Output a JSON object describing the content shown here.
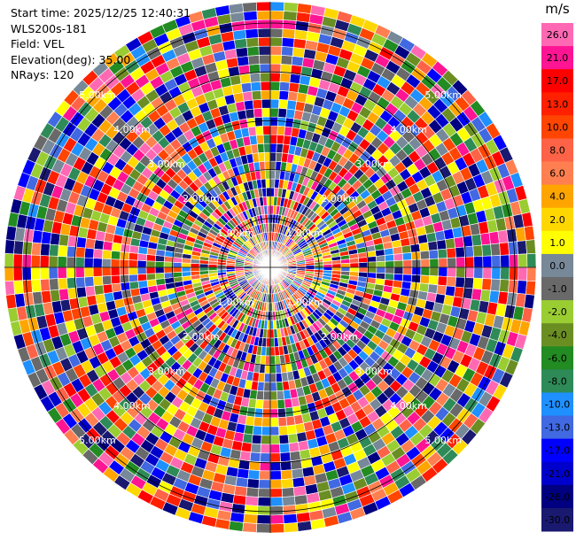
{
  "info": {
    "start_time": "Start time: 2025/12/25 12:40:31",
    "station": "WLS200s-181",
    "field": "Field: VEL",
    "elevation": "Elevation(deg): 35.00",
    "nrays": "NRays: 120"
  },
  "chart_data": {
    "type": "heatmap",
    "projection": "polar PPI",
    "field": "VEL",
    "nrays": 120,
    "elevation_deg": 35.0,
    "range_rings_km": [
      1.0,
      2.0,
      3.0,
      4.0,
      5.0
    ],
    "ring_labels": [
      "1.00km",
      "2.00km",
      "3.00km",
      "4.00km",
      "5.00km"
    ],
    "colorbar": {
      "unit": "m/s",
      "ticks": [
        "26.0",
        "21.0",
        "17.0",
        "13.0",
        "10.0",
        "8.0",
        "6.0",
        "4.0",
        "2.0",
        "1.0",
        "0.0",
        "-1.0",
        "-2.0",
        "-4.0",
        "-6.0",
        "-8.0",
        "-10.0",
        "-13.0",
        "-17.0",
        "-21.0",
        "-26.0",
        "-30.0"
      ],
      "colors": [
        "#ff69b4",
        "#ff1493",
        "#ff0000",
        "#ff2000",
        "#ff4500",
        "#ff6347",
        "#ff7f50",
        "#ffa500",
        "#ffd700",
        "#ffff00",
        "#778899",
        "#696969",
        "#9acd32",
        "#6b8e23",
        "#228b22",
        "#2e8b57",
        "#1e90ff",
        "#4169e1",
        "#0000ff",
        "#0000cd",
        "#000080",
        "#191970"
      ]
    }
  }
}
